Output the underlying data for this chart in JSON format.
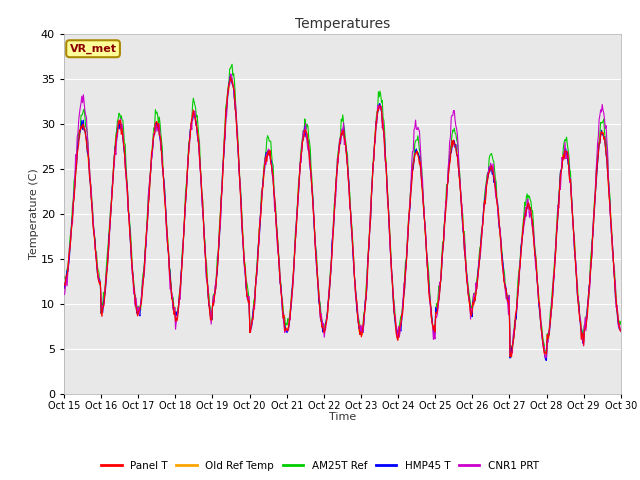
{
  "title": "Temperatures",
  "xlabel": "Time",
  "ylabel": "Temperature (C)",
  "ylim": [
    0,
    40
  ],
  "xlim": [
    0,
    15
  ],
  "xtick_labels": [
    "Oct 15",
    "Oct 16",
    "Oct 17",
    "Oct 18",
    "Oct 19",
    "Oct 20",
    "Oct 21",
    "Oct 22",
    "Oct 23",
    "Oct 24",
    "Oct 25",
    "Oct 26",
    "Oct 27",
    "Oct 28",
    "Oct 29",
    "Oct 30"
  ],
  "annotation_text": "VR_met",
  "annotation_color": "#8B0000",
  "annotation_bg": "#FFFF99",
  "bg_color": "#E8E8E8",
  "colors": {
    "Panel T": "#FF0000",
    "Old Ref Temp": "#FFA500",
    "AM25T Ref": "#00CC00",
    "HMP45 T": "#0000FF",
    "CNR1 PRT": "#CC00CC"
  },
  "legend_entries": [
    "Panel T",
    "Old Ref Temp",
    "AM25T Ref",
    "HMP45 T",
    "CNR1 PRT"
  ],
  "day_peaks": [
    30,
    30,
    30,
    31,
    35,
    27,
    29,
    29,
    32,
    27,
    28,
    25,
    21,
    27,
    29
  ],
  "day_mins": [
    12,
    9,
    9,
    8,
    10,
    7,
    7,
    7,
    6.5,
    6.5,
    9,
    10,
    4,
    6,
    7
  ]
}
